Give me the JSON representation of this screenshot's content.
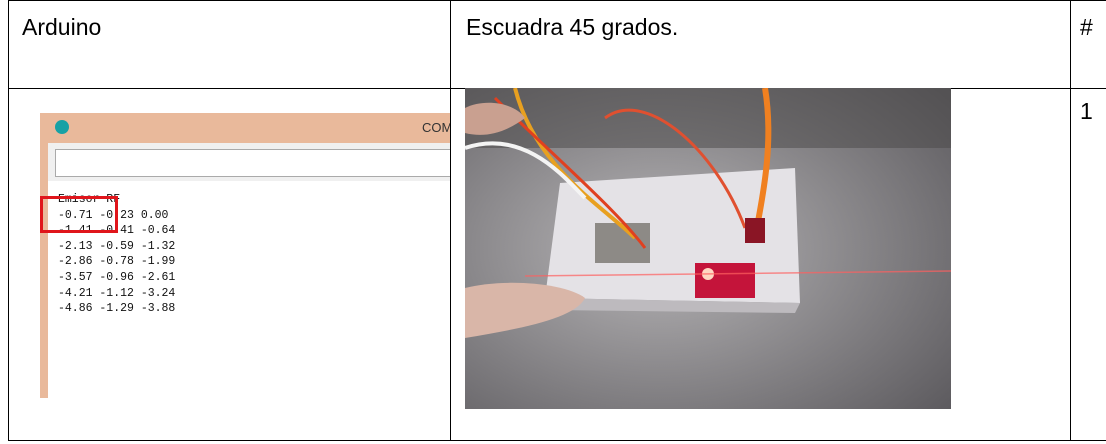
{
  "table": {
    "header": [
      "Arduino",
      "Escuadra 45 grados.",
      "#"
    ],
    "rows": [
      [
        "1"
      ]
    ]
  },
  "serial_monitor": {
    "title": "COM",
    "lines": [
      "Emisor RF",
      "-0.71 -0.23 0.00",
      "-1.41 -0.41 -0.64",
      "-2.13 -0.59 -1.32",
      "-2.86 -0.78 -1.99",
      "-3.57 -0.96 -2.61",
      "-4.21 -1.12 -3.24",
      "-4.86 -1.29 -3.88"
    ]
  }
}
